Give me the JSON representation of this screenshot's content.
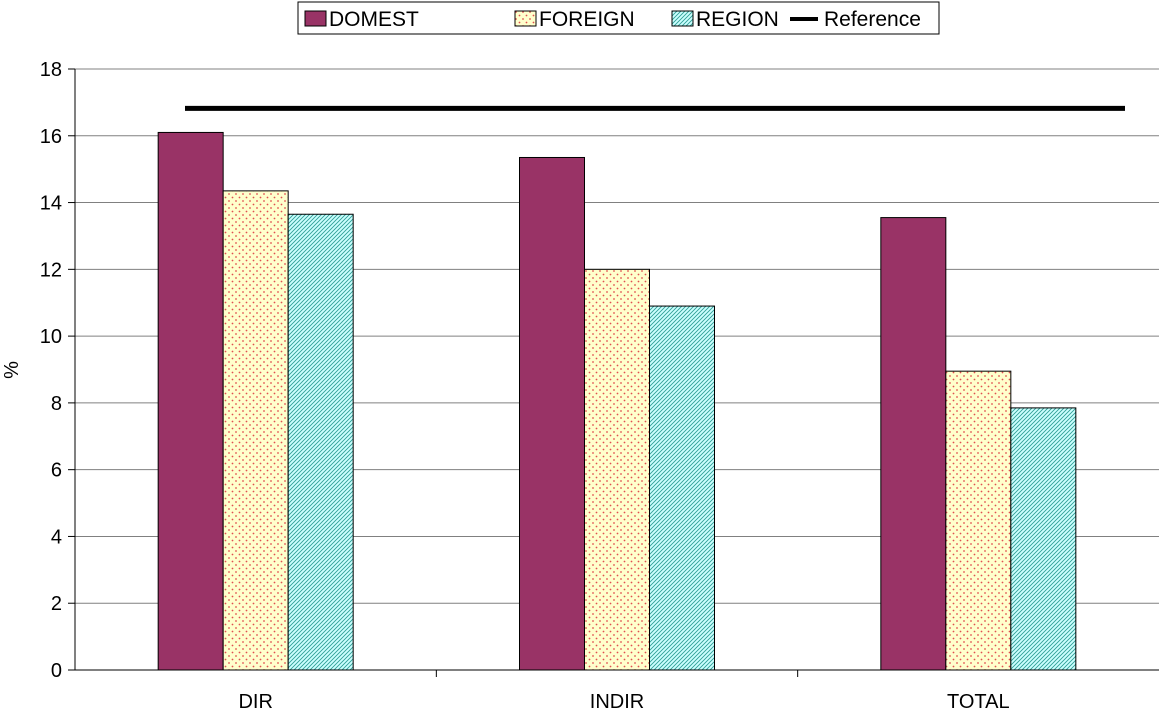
{
  "chart_data": {
    "type": "bar",
    "title": "",
    "xlabel": "",
    "ylabel": "%",
    "ylim": [
      0,
      18
    ],
    "yticks": [
      0,
      2,
      4,
      6,
      8,
      10,
      12,
      14,
      16,
      18
    ],
    "grid": true,
    "legend_position": "top-center",
    "categories": [
      "DIR",
      "INDIR",
      "TOTAL"
    ],
    "series": [
      {
        "name": "DOMEST",
        "values": [
          16.1,
          15.35,
          13.55
        ],
        "color": "#993366",
        "pattern": "solid"
      },
      {
        "name": "FOREIGN",
        "values": [
          14.35,
          12.0,
          8.95
        ],
        "color": "#FFFFCC",
        "pattern": "dots"
      },
      {
        "name": "REGION",
        "values": [
          13.65,
          10.9,
          7.85
        ],
        "color": "#CCFFFF",
        "pattern": "diagonal-hatch"
      }
    ],
    "reference": {
      "name": "Reference",
      "value": 16.82,
      "color": "#000000"
    }
  }
}
